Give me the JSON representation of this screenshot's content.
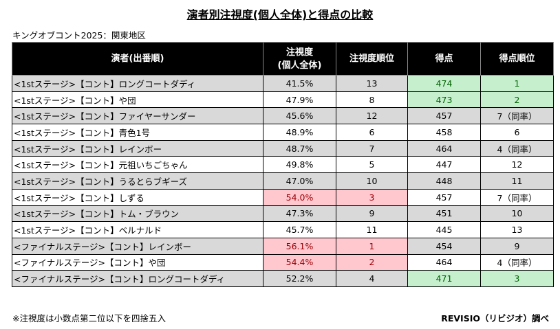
{
  "title": "演者別注視度(個人全体)と得点の比較",
  "subtitle": "キングオブコント2025：関東地区",
  "headers": {
    "performer": "演者(出番順)",
    "attention_line1": "注視度",
    "attention_line2": "(個人全体)",
    "attention_rank": "注視度順位",
    "score": "得点",
    "score_rank": "得点順位"
  },
  "rows": [
    {
      "performer": "<1stステージ>【コント】ロングコートダディ",
      "attention": "41.5%",
      "attention_rank": "13",
      "score": "474",
      "score_rank": "1",
      "gray": true,
      "att_hl": "",
      "score_hl": "green"
    },
    {
      "performer": "<1stステージ>【コント】や団",
      "attention": "47.9%",
      "attention_rank": "8",
      "score": "473",
      "score_rank": "2",
      "gray": false,
      "att_hl": "",
      "score_hl": "green"
    },
    {
      "performer": "<1stステージ>【コント】ファイヤーサンダー",
      "attention": "45.6%",
      "attention_rank": "12",
      "score": "457",
      "score_rank": "7（同率）",
      "gray": true,
      "att_hl": "",
      "score_hl": ""
    },
    {
      "performer": "<1stステージ>【コント】青色1号",
      "attention": "48.9%",
      "attention_rank": "6",
      "score": "458",
      "score_rank": "6",
      "gray": false,
      "att_hl": "",
      "score_hl": ""
    },
    {
      "performer": "<1stステージ>【コント】レインボー",
      "attention": "48.7%",
      "attention_rank": "7",
      "score": "464",
      "score_rank": "4（同率）",
      "gray": true,
      "att_hl": "",
      "score_hl": ""
    },
    {
      "performer": "<1stステージ>【コント】元祖いちごちゃん",
      "attention": "49.8%",
      "attention_rank": "5",
      "score": "447",
      "score_rank": "12",
      "gray": false,
      "att_hl": "",
      "score_hl": ""
    },
    {
      "performer": "<1stステージ>【コント】うるとらブギーズ",
      "attention": "47.0%",
      "attention_rank": "10",
      "score": "448",
      "score_rank": "11",
      "gray": true,
      "att_hl": "",
      "score_hl": ""
    },
    {
      "performer": "<1stステージ>【コント】しずる",
      "attention": "54.0%",
      "attention_rank": "3",
      "score": "457",
      "score_rank": "7（同率）",
      "gray": false,
      "att_hl": "red",
      "score_hl": ""
    },
    {
      "performer": "<1stステージ>【コント】トム・ブラウン",
      "attention": "47.3%",
      "attention_rank": "9",
      "score": "451",
      "score_rank": "10",
      "gray": true,
      "att_hl": "",
      "score_hl": ""
    },
    {
      "performer": "<1stステージ>【コント】ベルナルド",
      "attention": "45.7%",
      "attention_rank": "11",
      "score": "445",
      "score_rank": "13",
      "gray": false,
      "att_hl": "",
      "score_hl": ""
    },
    {
      "performer": "<ファイナルステージ>【コント】レインボー",
      "attention": "56.1%",
      "attention_rank": "1",
      "score": "454",
      "score_rank": "9",
      "gray": true,
      "att_hl": "red",
      "score_hl": ""
    },
    {
      "performer": "<ファイナルステージ>【コント】や団",
      "attention": "54.4%",
      "attention_rank": "2",
      "score": "464",
      "score_rank": "4（同率）",
      "gray": false,
      "att_hl": "red",
      "score_hl": ""
    },
    {
      "performer": "<ファイナルステージ>【コント】ロングコートダディ",
      "attention": "52.2%",
      "attention_rank": "4",
      "score": "471",
      "score_rank": "3",
      "gray": true,
      "att_hl": "",
      "score_hl": "green"
    }
  ],
  "footnote": "※注視度は小数点第二位以下を四捨五入",
  "credit": "REVISIO（リビジオ）調べ"
}
